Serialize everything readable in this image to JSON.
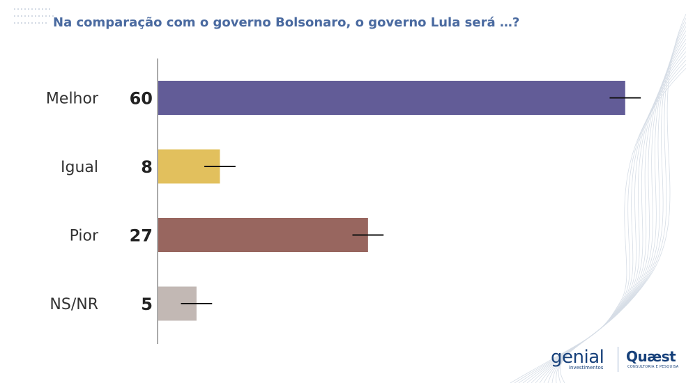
{
  "title": "Na comparação com o governo Bolsonaro, o governo Lula será …?",
  "chart_data": {
    "type": "bar",
    "orientation": "horizontal",
    "title": "Na comparação com o governo Bolsonaro, o governo Lula será …?",
    "categories": [
      "Melhor",
      "Igual",
      "Pior",
      "NS/NR"
    ],
    "values": [
      60,
      8,
      27,
      5
    ],
    "colors": [
      "#625c97",
      "#e2c05d",
      "#98665f",
      "#c2b8b4"
    ],
    "error_margin": 2,
    "xlim": [
      0,
      64
    ],
    "grid": false,
    "legend": "none"
  },
  "logos": {
    "genial": "genial",
    "genial_sub": "investimentos",
    "quaest": "Quæst",
    "quaest_sub": "CONSULTORIA E PESQUISA"
  }
}
